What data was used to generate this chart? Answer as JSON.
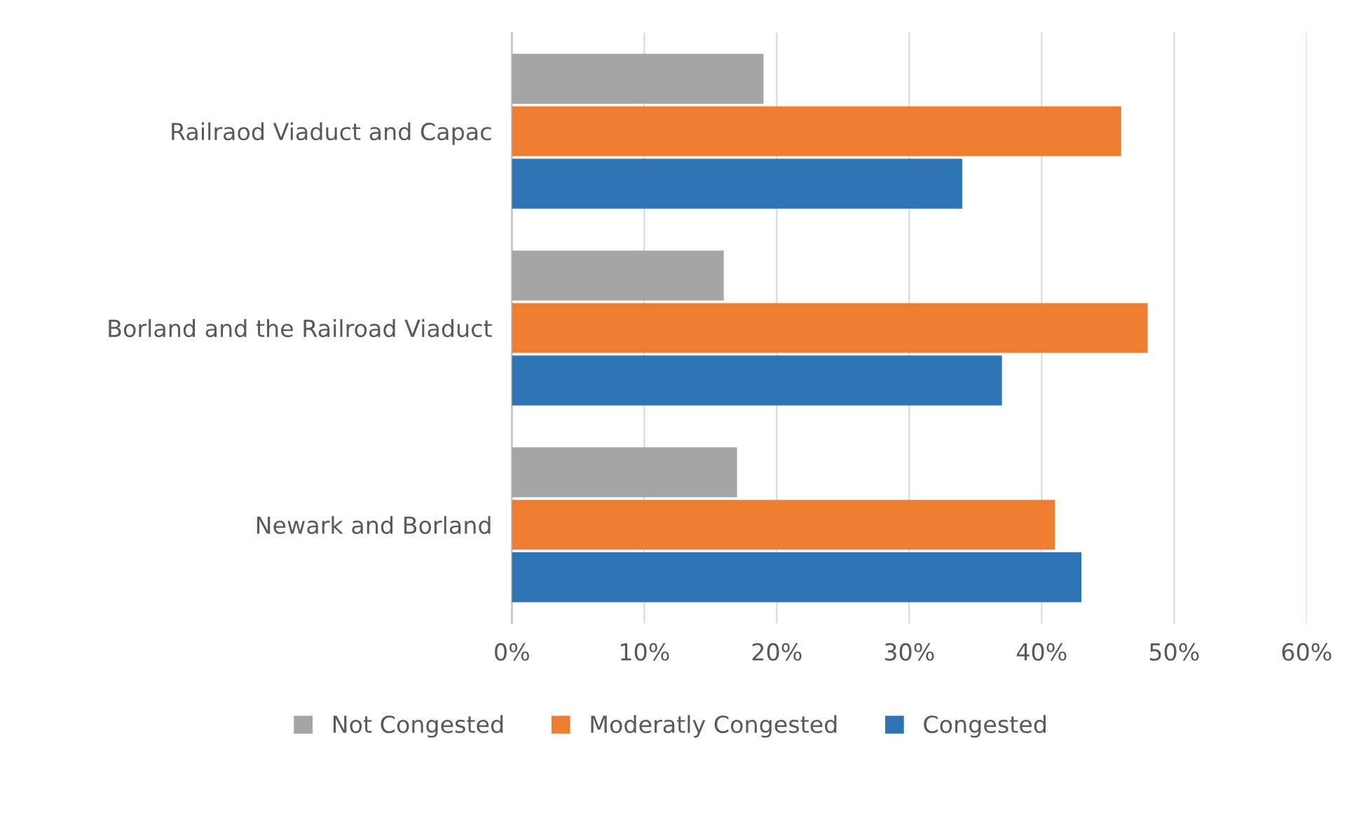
{
  "chart_data": {
    "type": "bar",
    "orientation": "horizontal",
    "categories": [
      "Railraod Viaduct and Capac",
      "Borland and the Railroad Viaduct",
      "Newark and Borland"
    ],
    "series": [
      {
        "name": "Not Congested",
        "color": "#a5a5a5",
        "values": [
          19,
          16,
          17
        ]
      },
      {
        "name": "Moderatly Congested",
        "color": "#ed7d31",
        "values": [
          46,
          48,
          41
        ]
      },
      {
        "name": "Congested",
        "color": "#2e75b6",
        "values": [
          34,
          37,
          43
        ]
      }
    ],
    "xlim": [
      0,
      60
    ],
    "xticks": [
      {
        "value": 0,
        "label": "0%"
      },
      {
        "value": 10,
        "label": "10%"
      },
      {
        "value": 20,
        "label": "20%"
      },
      {
        "value": 30,
        "label": "30%"
      },
      {
        "value": 40,
        "label": "40%"
      },
      {
        "value": 50,
        "label": "50%"
      },
      {
        "value": 60,
        "label": "60%"
      }
    ],
    "grid": "x",
    "legend": "bottom"
  }
}
